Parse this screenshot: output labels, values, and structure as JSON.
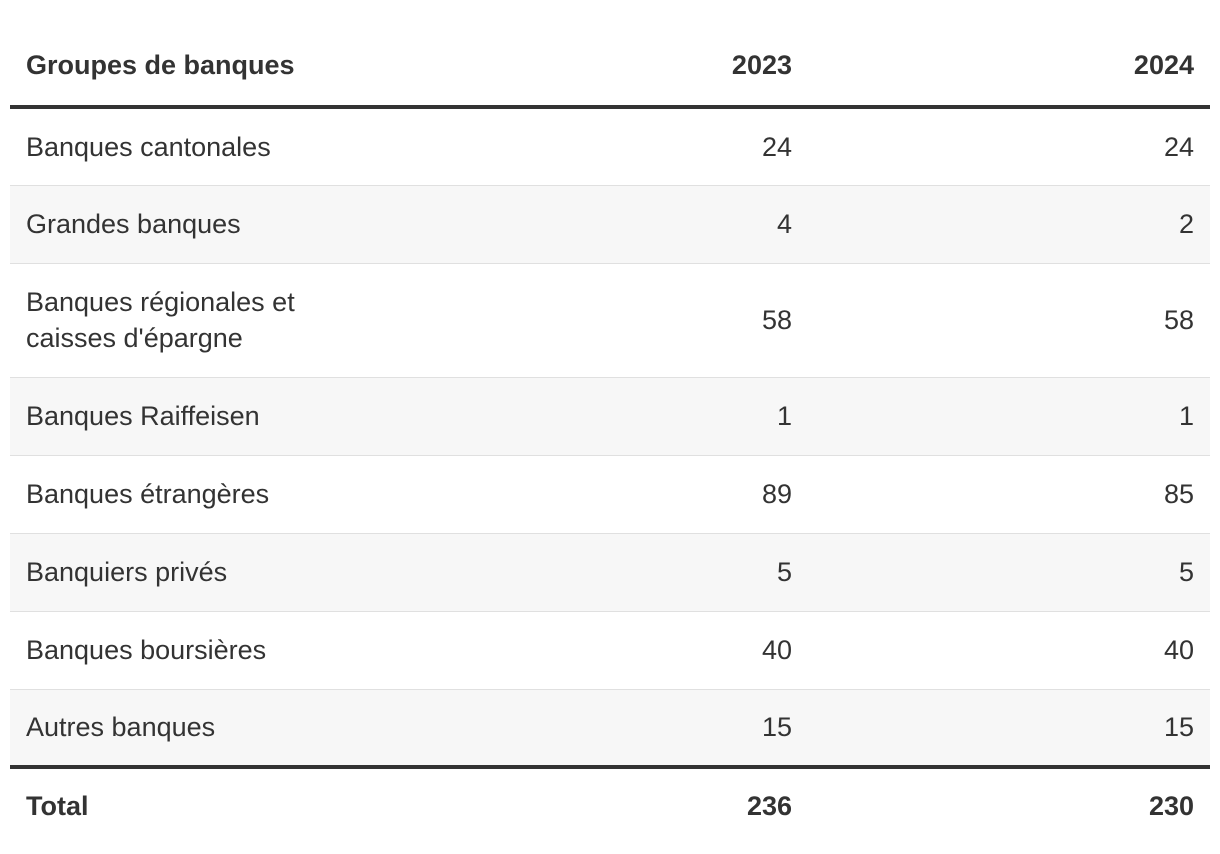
{
  "chart_data": {
    "type": "table",
    "columns": [
      "Groupes de banques",
      "2023",
      "2024"
    ],
    "rows": [
      {
        "label": "Banques cantonales",
        "y2023": "24",
        "y2024": "24"
      },
      {
        "label": "Grandes banques",
        "y2023": "4",
        "y2024": "2"
      },
      {
        "label": "Banques régionales et caisses d'épargne",
        "y2023": "58",
        "y2024": "58"
      },
      {
        "label": "Banques Raiffeisen",
        "y2023": "1",
        "y2024": "1"
      },
      {
        "label": "Banques étrangères",
        "y2023": "89",
        "y2024": "85"
      },
      {
        "label": "Banquiers privés",
        "y2023": "5",
        "y2024": "5"
      },
      {
        "label": "Banques boursières",
        "y2023": "40",
        "y2024": "40"
      },
      {
        "label": "Autres banques",
        "y2023": "15",
        "y2024": "15"
      }
    ],
    "total": {
      "label": "Total",
      "y2023": "236",
      "y2024": "230"
    }
  },
  "colors": {
    "text": "#333333",
    "stripe": "#f7f7f7",
    "rule": "#333333",
    "row_divider": "#e0e0e0"
  }
}
